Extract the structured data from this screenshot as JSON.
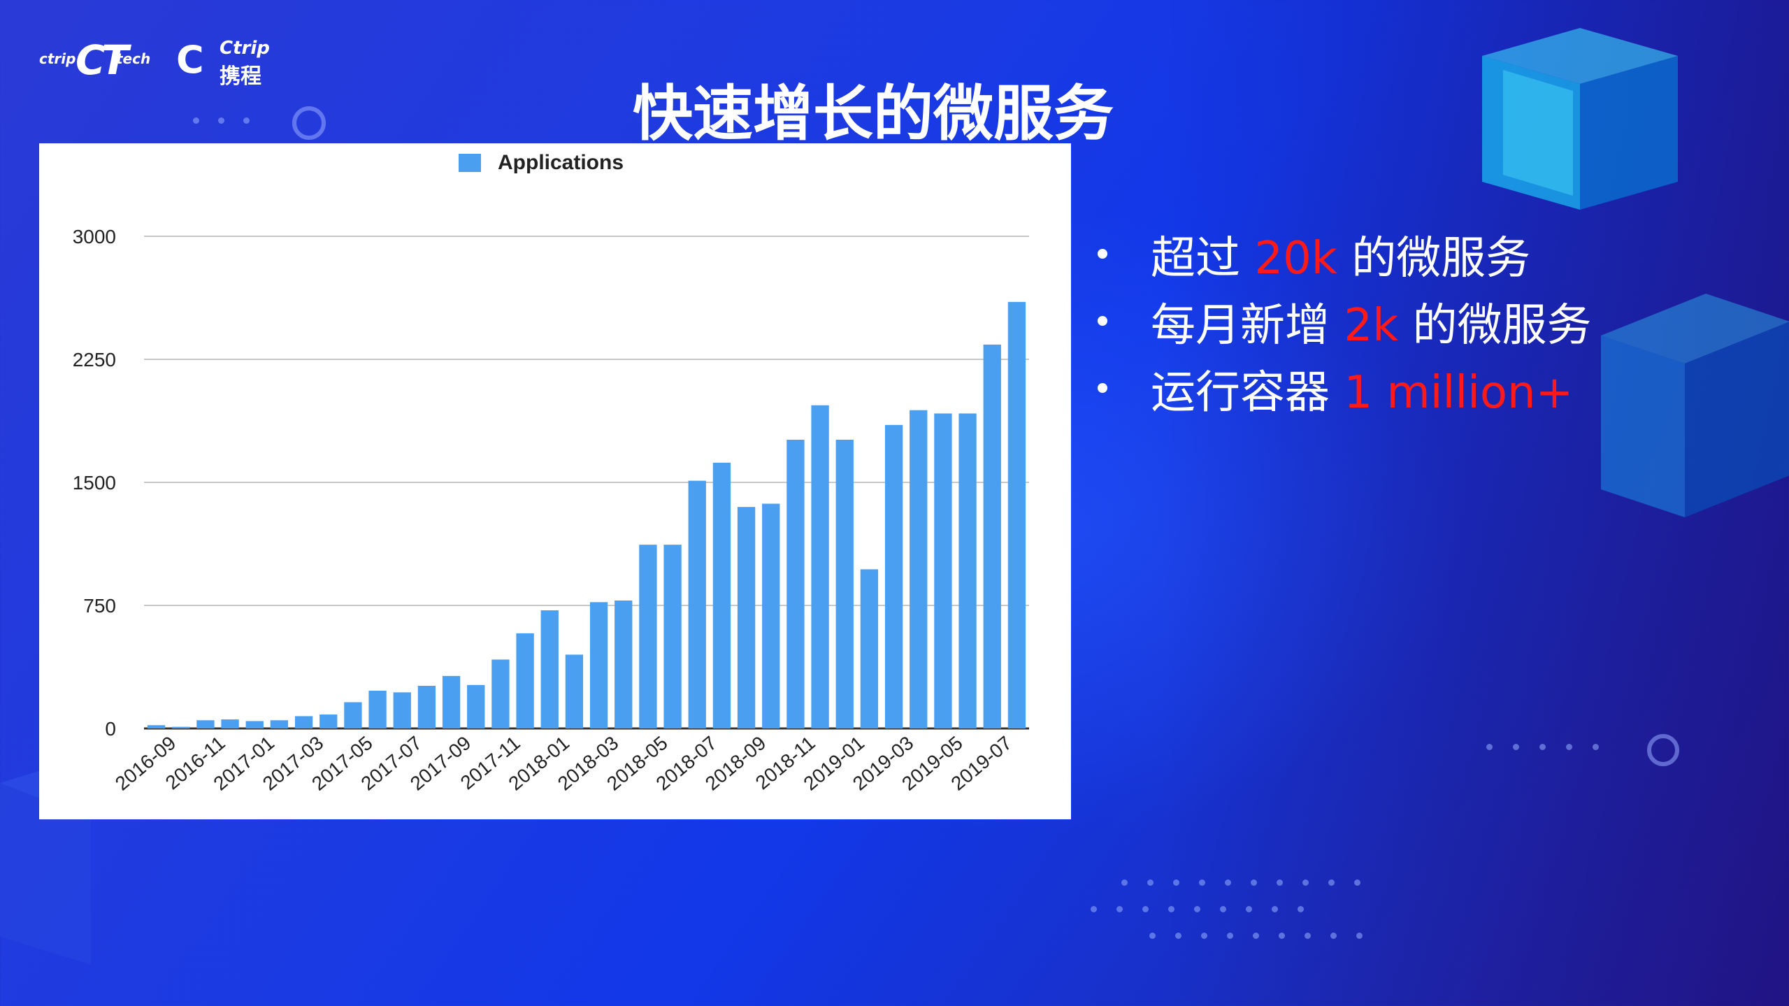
{
  "logos": {
    "ct_small_left": "ctrip",
    "ct_mark": "CT",
    "ct_small_right": "tech",
    "ctrip_en": "Ctrip",
    "ctrip_zh": "携程"
  },
  "title": "快速增长的微服务",
  "bullets": [
    {
      "before": "超过 ",
      "highlight": "20k",
      "after": " 的微服务"
    },
    {
      "before": "每月新增 ",
      "highlight": "2k",
      "after": " 的微服务"
    },
    {
      "before": "运行容器 ",
      "highlight": "1 million+",
      "after": ""
    }
  ],
  "colors": {
    "bar": "#4a9ff0",
    "highlight": "#ff1a1a",
    "background": "#1f3be0"
  },
  "chart_data": {
    "type": "bar",
    "legend": [
      "Applications"
    ],
    "legend_position": "top-center",
    "grid": true,
    "ylim": [
      0,
      3000
    ],
    "yticks": [
      0,
      750,
      1500,
      2250,
      3000
    ],
    "categories": [
      "2016-09",
      "2016-10",
      "2016-11",
      "2016-12",
      "2017-01",
      "2017-02",
      "2017-03",
      "2017-04",
      "2017-05",
      "2017-06",
      "2017-07",
      "2017-08",
      "2017-09",
      "2017-10",
      "2017-11",
      "2017-12",
      "2018-01",
      "2018-02",
      "2018-03",
      "2018-04",
      "2018-05",
      "2018-06",
      "2018-07",
      "2018-08",
      "2018-09",
      "2018-10",
      "2018-11",
      "2018-12",
      "2019-01",
      "2019-02",
      "2019-03",
      "2019-04",
      "2019-05",
      "2019-06",
      "2019-07",
      "2019-08"
    ],
    "xtick_labels": [
      "2016-09",
      "2016-11",
      "2017-01",
      "2017-03",
      "2017-05",
      "2017-07",
      "2017-09",
      "2017-11",
      "2018-01",
      "2018-03",
      "2018-05",
      "2018-07",
      "2018-09",
      "2018-11",
      "2019-01",
      "2019-03",
      "2019-05",
      "2019-07"
    ],
    "series": [
      {
        "name": "Applications",
        "values": [
          20,
          10,
          50,
          55,
          45,
          50,
          75,
          85,
          160,
          230,
          220,
          260,
          320,
          265,
          420,
          580,
          720,
          450,
          770,
          780,
          1120,
          1120,
          1510,
          1620,
          1350,
          1370,
          1760,
          1970,
          1760,
          970,
          1850,
          1940,
          1920,
          1920,
          2340,
          2600
        ]
      }
    ]
  }
}
